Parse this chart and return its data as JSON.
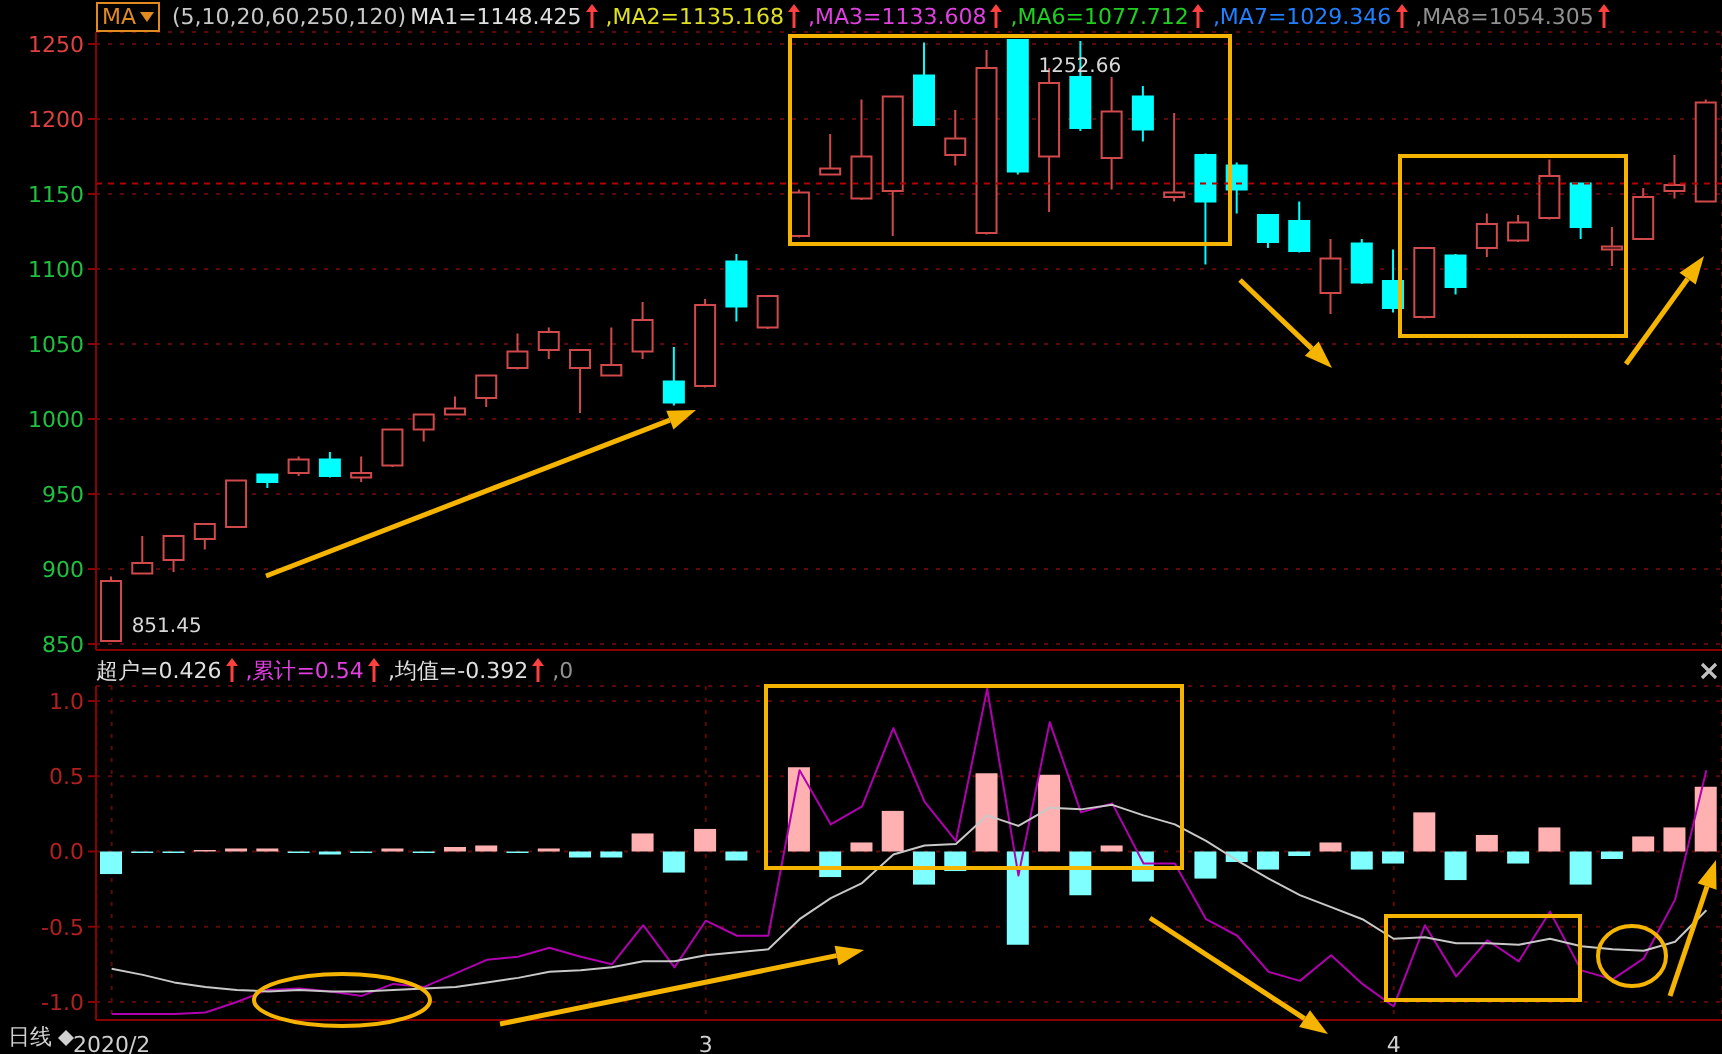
{
  "chart_data": [
    {
      "type": "candlestick",
      "categories": [
        "2020/2",
        null,
        null,
        null,
        null,
        null,
        null,
        null,
        null,
        null,
        null,
        null,
        null,
        null,
        null,
        null,
        null,
        null,
        null,
        "3",
        null,
        null,
        null,
        null,
        null,
        null,
        null,
        null,
        null,
        null,
        null,
        null,
        null,
        null,
        null,
        null,
        null,
        null,
        null,
        null,
        null,
        "4",
        null,
        null,
        null,
        null,
        null,
        null,
        null,
        null,
        null,
        null
      ],
      "ohlc": [
        [
          852,
          895,
          851.45,
          892
        ],
        [
          897,
          922,
          897,
          904
        ],
        [
          906,
          922,
          898,
          922
        ],
        [
          920,
          930,
          913,
          930
        ],
        [
          928,
          959,
          928,
          959
        ],
        [
          963,
          963,
          954,
          958
        ],
        [
          964,
          975,
          962,
          973
        ],
        [
          973,
          978,
          961,
          962
        ],
        [
          961,
          975,
          958,
          964
        ],
        [
          969,
          993,
          968,
          993
        ],
        [
          993,
          1003,
          985,
          1003
        ],
        [
          1003,
          1015,
          1003,
          1007
        ],
        [
          1014,
          1029,
          1008,
          1029
        ],
        [
          1034,
          1057,
          1033,
          1045
        ],
        [
          1046,
          1061,
          1040,
          1058
        ],
        [
          1034,
          1046,
          1004,
          1046
        ],
        [
          1029,
          1061,
          1029,
          1036
        ],
        [
          1045,
          1078,
          1040,
          1066
        ],
        [
          1025,
          1048,
          1009,
          1011
        ],
        [
          1022,
          1080,
          1021,
          1076
        ],
        [
          1105,
          1110,
          1065,
          1075
        ],
        [
          1061,
          1082,
          1060,
          1082
        ],
        [
          1122,
          1153,
          1121,
          1151
        ],
        [
          1163,
          1190,
          1163,
          1167
        ],
        [
          1147,
          1213,
          1146,
          1175
        ],
        [
          1152,
          1215,
          1122,
          1215
        ],
        [
          1229,
          1251,
          1196,
          1196
        ],
        [
          1176,
          1206,
          1169,
          1187
        ],
        [
          1124,
          1246,
          1123,
          1234
        ],
        [
          1252.66,
          1252.66,
          1163,
          1165
        ],
        [
          1175,
          1234,
          1138,
          1224
        ],
        [
          1228,
          1252,
          1192,
          1194
        ],
        [
          1174,
          1228,
          1153,
          1205
        ],
        [
          1215,
          1222,
          1185,
          1193
        ],
        [
          1148,
          1204,
          1145,
          1151
        ],
        [
          1176,
          1177,
          1103,
          1145
        ],
        [
          1169,
          1171,
          1137,
          1153
        ],
        [
          1136,
          1136,
          1114,
          1118
        ],
        [
          1132,
          1145,
          1111,
          1112
        ],
        [
          1084,
          1120,
          1070,
          1107
        ],
        [
          1117,
          1120,
          1090,
          1091
        ],
        [
          1092,
          1113,
          1071,
          1074
        ],
        [
          1068,
          1114,
          1067,
          1114
        ],
        [
          1109,
          1110,
          1083,
          1088
        ],
        [
          1114,
          1137,
          1108,
          1130
        ],
        [
          1119,
          1136,
          1118,
          1131
        ],
        [
          1134,
          1173,
          1133,
          1162
        ],
        [
          1157,
          1157,
          1120,
          1128
        ],
        [
          1113,
          1128,
          1102,
          1115
        ],
        [
          1120,
          1154,
          1120,
          1148
        ],
        [
          1152,
          1176,
          1147,
          1156
        ],
        [
          1145,
          1213,
          1145,
          1211
        ]
      ],
      "ylim": [
        846,
        1258
      ],
      "yticks": [
        850,
        900,
        950,
        1000,
        1050,
        1100,
        1150,
        1200,
        1250
      ],
      "grid": true,
      "tick_labels": "y",
      "ref_lines": [
        {
          "axis": "y",
          "value": 1157,
          "color": "#b00000",
          "line_style": "dashed"
        }
      ],
      "annotations": [
        "MA",
        "(5,10,20,60,250,120)",
        "MA1=1148.425",
        ",MA2=1135.168",
        ",MA3=1133.608",
        ",MA6=1077.712",
        ",MA7=1029.346",
        ",MA8=1054.305",
        {
          "text": "851.45",
          "x": "2020/2",
          "y": 851.45
        },
        {
          "text": "1252.66",
          "y": 1252.66
        }
      ]
    },
    {
      "type": "bar",
      "categories": [
        "2020/2",
        null,
        null,
        null,
        null,
        null,
        null,
        null,
        null,
        null,
        null,
        null,
        null,
        null,
        null,
        null,
        null,
        null,
        null,
        "3",
        null,
        null,
        null,
        null,
        null,
        null,
        null,
        null,
        null,
        null,
        null,
        null,
        null,
        null,
        null,
        null,
        null,
        null,
        null,
        null,
        null,
        "4",
        null,
        null,
        null,
        null,
        null,
        null,
        null,
        null,
        null,
        null
      ],
      "series": [
        {
          "type": "bar",
          "values": [
            -0.15,
            -0.01,
            -0.01,
            0.01,
            0.02,
            0.02,
            -0.01,
            -0.02,
            -0.01,
            0.02,
            -0.01,
            0.03,
            0.04,
            -0.01,
            0.02,
            -0.04,
            -0.04,
            0.12,
            -0.14,
            0.15,
            -0.06,
            0,
            0.56,
            -0.17,
            0.06,
            0.27,
            -0.22,
            -0.13,
            0.52,
            -0.62,
            0.51,
            -0.29,
            0.04,
            -0.2,
            0,
            -0.18,
            -0.07,
            -0.12,
            -0.03,
            0.06,
            -0.12,
            -0.08,
            0.26,
            -0.19,
            0.11,
            -0.08,
            0.16,
            -0.22,
            -0.05,
            0.1,
            0.16,
            0.43
          ],
          "colors": [
            "#7fffff",
            "#7fffff",
            "#7fffff",
            "#ffb0b0",
            "#ffb0b0",
            "#ffb0b0",
            "#7fffff",
            "#7fffff",
            "#7fffff",
            "#ffb0b0",
            "#7fffff",
            "#ffb0b0",
            "#ffb0b0",
            "#7fffff",
            "#ffb0b0",
            "#7fffff",
            "#7fffff",
            "#ffb0b0",
            "#7fffff",
            "#ffb0b0",
            "#7fffff",
            "#ffb0b0",
            "#ffb0b0",
            "#7fffff",
            "#ffb0b0",
            "#ffb0b0",
            "#7fffff",
            "#7fffff",
            "#ffb0b0",
            "#7fffff",
            "#ffb0b0",
            "#7fffff",
            "#ffb0b0",
            "#7fffff",
            "#ffb0b0",
            "#7fffff",
            "#7fffff",
            "#7fffff",
            "#7fffff",
            "#ffb0b0",
            "#7fffff",
            "#7fffff",
            "#ffb0b0",
            "#7fffff",
            "#ffb0b0",
            "#7fffff",
            "#ffb0b0",
            "#7fffff",
            "#7fffff",
            "#ffb0b0",
            "#ffb0b0",
            "#ffb0b0"
          ]
        },
        {
          "type": "line",
          "color": "#b000b0",
          "values": [
            -1.08,
            -1.08,
            -1.08,
            -1.07,
            -1.0,
            -0.92,
            -0.91,
            -0.93,
            -0.96,
            -0.88,
            -0.9,
            -0.81,
            -0.72,
            -0.7,
            -0.64,
            -0.7,
            -0.75,
            -0.49,
            -0.77,
            -0.46,
            -0.56,
            -0.56,
            0.54,
            0.18,
            0.3,
            0.82,
            0.33,
            0.07,
            1.08,
            -0.16,
            0.86,
            0.26,
            0.32,
            -0.08,
            -0.08,
            -0.45,
            -0.56,
            -0.8,
            -0.86,
            -0.69,
            -0.88,
            -1.03,
            -0.49,
            -0.83,
            -0.59,
            -0.73,
            -0.4,
            -0.79,
            -0.85,
            -0.71,
            -0.32,
            0.54
          ]
        },
        {
          "type": "line",
          "color": "#c8c8c8",
          "values": [
            -0.78,
            -0.82,
            -0.87,
            -0.9,
            -0.92,
            -0.93,
            -0.92,
            -0.93,
            -0.93,
            -0.92,
            -0.91,
            -0.9,
            -0.87,
            -0.84,
            -0.8,
            -0.79,
            -0.77,
            -0.73,
            -0.73,
            -0.69,
            -0.67,
            -0.65,
            -0.45,
            -0.31,
            -0.21,
            -0.02,
            0.04,
            0.05,
            0.24,
            0.17,
            0.29,
            0.28,
            0.31,
            0.24,
            0.18,
            0.07,
            -0.06,
            -0.18,
            -0.29,
            -0.37,
            -0.45,
            -0.58,
            -0.57,
            -0.61,
            -0.61,
            -0.62,
            -0.58,
            -0.63,
            -0.65,
            -0.66,
            -0.6,
            -0.39
          ]
        }
      ],
      "ylim": [
        -1.12,
        1.1
      ],
      "yticks": [
        {
          "value": 1,
          "label": "1.0"
        },
        {
          "value": 0.5,
          "label": "0.5"
        },
        {
          "value": 0,
          "label": "0.0"
        },
        {
          "value": -0.5,
          "label": "-0.5"
        },
        {
          "value": -1,
          "label": "-1.0"
        }
      ],
      "grid": true,
      "annotations": [
        "超户=0.426",
        ",累计=0.54",
        ",均值=-0.392",
        ",0",
        "日线"
      ]
    }
  ]
}
